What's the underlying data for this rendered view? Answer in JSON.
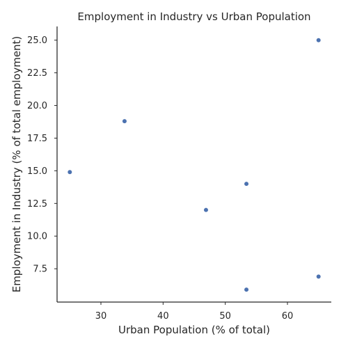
{
  "chart_data": {
    "type": "scatter",
    "title": "Employment in Industry vs Urban Population",
    "xlabel": "Urban Population (% of total)",
    "ylabel": "Employment in Industry (% of total employment)",
    "xlim": [
      22.95,
      67.05
    ],
    "ylim": [
      4.95,
      26.05
    ],
    "xticks": [
      {
        "value": 30,
        "label": "30"
      },
      {
        "value": 40,
        "label": "40"
      },
      {
        "value": 50,
        "label": "50"
      },
      {
        "value": 60,
        "label": "60"
      }
    ],
    "yticks": [
      {
        "value": 7.5,
        "label": "7.5"
      },
      {
        "value": 10,
        "label": "10.0"
      },
      {
        "value": 12.5,
        "label": "12.5"
      },
      {
        "value": 15,
        "label": "15.0"
      },
      {
        "value": 17.5,
        "label": "17.5"
      },
      {
        "value": 20,
        "label": "20.0"
      },
      {
        "value": 22.5,
        "label": "22.5"
      },
      {
        "value": 25,
        "label": "25.0"
      }
    ],
    "grid": false,
    "marker_color": "#4c72b0",
    "axis_color": "#262626",
    "points": [
      {
        "x": 65.0,
        "y": 25.0
      },
      {
        "x": 33.8,
        "y": 18.8
      },
      {
        "x": 25.0,
        "y": 14.9
      },
      {
        "x": 53.4,
        "y": 14.0
      },
      {
        "x": 46.9,
        "y": 12.0
      },
      {
        "x": 65.0,
        "y": 6.9
      },
      {
        "x": 53.4,
        "y": 5.9
      }
    ]
  }
}
